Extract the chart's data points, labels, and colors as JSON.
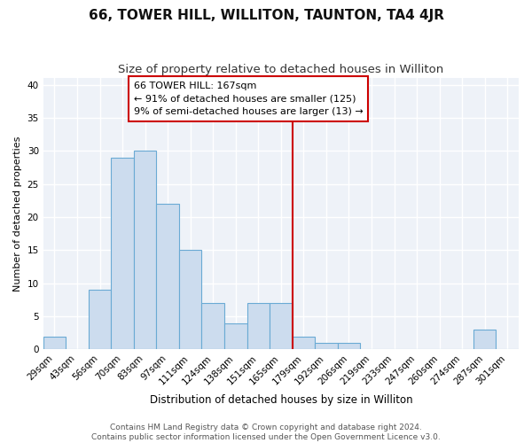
{
  "title": "66, TOWER HILL, WILLITON, TAUNTON, TA4 4JR",
  "subtitle": "Size of property relative to detached houses in Williton",
  "xlabel": "Distribution of detached houses by size in Williton",
  "ylabel": "Number of detached properties",
  "bar_color": "#ccdcee",
  "bar_edge_color": "#6aaad4",
  "background_color": "#eef2f8",
  "grid_color": "#ffffff",
  "categories": [
    "29sqm",
    "43sqm",
    "56sqm",
    "70sqm",
    "83sqm",
    "97sqm",
    "111sqm",
    "124sqm",
    "138sqm",
    "151sqm",
    "165sqm",
    "179sqm",
    "192sqm",
    "206sqm",
    "219sqm",
    "233sqm",
    "247sqm",
    "260sqm",
    "274sqm",
    "287sqm",
    "301sqm"
  ],
  "values": [
    2,
    0,
    9,
    29,
    30,
    22,
    15,
    7,
    4,
    7,
    7,
    2,
    1,
    1,
    0,
    0,
    0,
    0,
    0,
    3,
    0
  ],
  "vline_x": 10.5,
  "vline_color": "#cc0000",
  "annotation_line1": "66 TOWER HILL: 167sqm",
  "annotation_line2": "← 91% of detached houses are smaller (125)",
  "annotation_line3": "9% of semi-detached houses are larger (13) →",
  "ylim": [
    0,
    41
  ],
  "yticks": [
    0,
    5,
    10,
    15,
    20,
    25,
    30,
    35,
    40
  ],
  "footer_line1": "Contains HM Land Registry data © Crown copyright and database right 2024.",
  "footer_line2": "Contains public sector information licensed under the Open Government Licence v3.0.",
  "title_fontsize": 11,
  "subtitle_fontsize": 9.5,
  "annotation_fontsize": 8,
  "ylabel_fontsize": 8,
  "xlabel_fontsize": 8.5,
  "tick_fontsize": 7.5,
  "footer_fontsize": 6.5
}
